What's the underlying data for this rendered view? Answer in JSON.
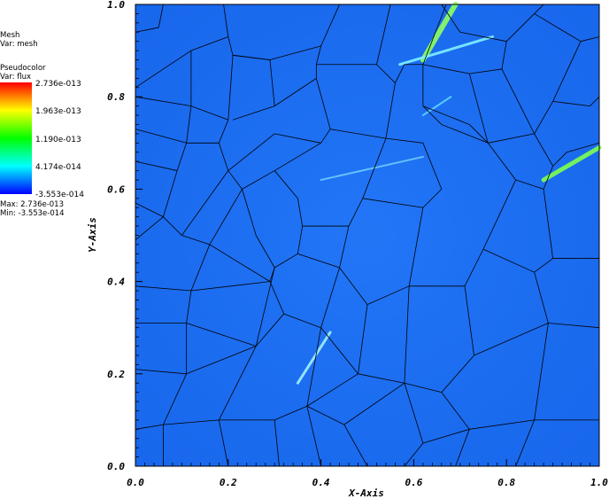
{
  "legend": {
    "mesh_title": "Mesh",
    "mesh_var": "Var: mesh",
    "pc_title": "Pseudocolor",
    "pc_var": "Var: flux",
    "ticks": [
      "2.736e-013",
      "1.963e-013",
      "1.190e-013",
      "4.174e-014",
      "-3.553e-014"
    ],
    "max": "Max:  2.736e-013",
    "min": "Min: -3.553e-014",
    "colors": [
      "#ff0000",
      "#ffff00",
      "#00ff00",
      "#00ffff",
      "#0000ff"
    ]
  },
  "chart_data": {
    "type": "heatmap",
    "title": "",
    "xlabel": "X-Axis",
    "ylabel": "Y-Axis",
    "xlim": [
      0.0,
      1.0
    ],
    "ylim": [
      0.0,
      1.0
    ],
    "xticks": [
      "0.0",
      "0.2",
      "0.4",
      "0.6",
      "0.8",
      "1.0"
    ],
    "yticks": [
      "0.0",
      "0.2",
      "0.4",
      "0.6",
      "0.8",
      "1.0"
    ],
    "colorbar": {
      "min": -3.553e-14,
      "max": 2.736e-13,
      "variable": "flux"
    },
    "base_color": "#1c6ef2",
    "mesh_lines": [
      [
        [
          0.0,
          0.94
        ],
        [
          0.05,
          0.95
        ]
      ],
      [
        [
          0.05,
          0.95
        ],
        [
          0.06,
          1.0
        ]
      ],
      [
        [
          0.0,
          0.82
        ],
        [
          0.12,
          0.9
        ]
      ],
      [
        [
          0.12,
          0.9
        ],
        [
          0.2,
          0.93
        ]
      ],
      [
        [
          0.2,
          0.93
        ],
        [
          0.19,
          1.0
        ]
      ],
      [
        [
          0.2,
          0.93
        ],
        [
          0.21,
          0.89
        ]
      ],
      [
        [
          0.21,
          0.89
        ],
        [
          0.29,
          0.88
        ]
      ],
      [
        [
          0.29,
          0.88
        ],
        [
          0.4,
          0.91
        ]
      ],
      [
        [
          0.4,
          0.91
        ],
        [
          0.44,
          1.0
        ]
      ],
      [
        [
          0.4,
          0.91
        ],
        [
          0.39,
          0.87
        ]
      ],
      [
        [
          0.39,
          0.87
        ],
        [
          0.52,
          0.87
        ]
      ],
      [
        [
          0.52,
          0.87
        ],
        [
          0.55,
          1.0
        ]
      ],
      [
        [
          0.52,
          0.87
        ],
        [
          0.56,
          0.83
        ]
      ],
      [
        [
          0.56,
          0.83
        ],
        [
          0.58,
          0.87
        ]
      ],
      [
        [
          0.58,
          0.87
        ],
        [
          0.62,
          0.87
        ]
      ],
      [
        [
          0.62,
          0.87
        ],
        [
          0.67,
          1.0
        ]
      ],
      [
        [
          0.12,
          0.9
        ],
        [
          0.12,
          0.78
        ]
      ],
      [
        [
          0.0,
          0.8
        ],
        [
          0.12,
          0.78
        ]
      ],
      [
        [
          0.12,
          0.78
        ],
        [
          0.2,
          0.75
        ]
      ],
      [
        [
          0.2,
          0.75
        ],
        [
          0.21,
          0.89
        ]
      ],
      [
        [
          0.21,
          0.89
        ],
        [
          0.29,
          0.88
        ]
      ],
      [
        [
          0.29,
          0.88
        ],
        [
          0.3,
          0.78
        ]
      ],
      [
        [
          0.3,
          0.78
        ],
        [
          0.21,
          0.75
        ]
      ],
      [
        [
          0.39,
          0.87
        ],
        [
          0.39,
          0.84
        ]
      ],
      [
        [
          0.39,
          0.84
        ],
        [
          0.3,
          0.78
        ]
      ],
      [
        [
          0.39,
          0.84
        ],
        [
          0.42,
          0.73
        ]
      ],
      [
        [
          0.42,
          0.73
        ],
        [
          0.54,
          0.71
        ]
      ],
      [
        [
          0.54,
          0.71
        ],
        [
          0.56,
          0.83
        ]
      ],
      [
        [
          0.42,
          0.73
        ],
        [
          0.4,
          0.7
        ]
      ],
      [
        [
          0.4,
          0.7
        ],
        [
          0.3,
          0.72
        ]
      ],
      [
        [
          0.0,
          0.73
        ],
        [
          0.11,
          0.7
        ]
      ],
      [
        [
          0.11,
          0.7
        ],
        [
          0.12,
          0.78
        ]
      ],
      [
        [
          0.11,
          0.7
        ],
        [
          0.09,
          0.64
        ]
      ],
      [
        [
          0.09,
          0.64
        ],
        [
          0.0,
          0.66
        ]
      ],
      [
        [
          0.2,
          0.75
        ],
        [
          0.18,
          0.7
        ]
      ],
      [
        [
          0.18,
          0.7
        ],
        [
          0.11,
          0.7
        ]
      ],
      [
        [
          0.18,
          0.7
        ],
        [
          0.2,
          0.64
        ]
      ],
      [
        [
          0.2,
          0.64
        ],
        [
          0.3,
          0.72
        ]
      ],
      [
        [
          0.2,
          0.64
        ],
        [
          0.23,
          0.6
        ]
      ],
      [
        [
          0.23,
          0.6
        ],
        [
          0.3,
          0.64
        ]
      ],
      [
        [
          0.3,
          0.64
        ],
        [
          0.4,
          0.7
        ]
      ],
      [
        [
          0.3,
          0.64
        ],
        [
          0.35,
          0.58
        ]
      ],
      [
        [
          0.35,
          0.58
        ],
        [
          0.36,
          0.52
        ]
      ],
      [
        [
          0.36,
          0.52
        ],
        [
          0.46,
          0.52
        ]
      ],
      [
        [
          0.46,
          0.52
        ],
        [
          0.49,
          0.58
        ]
      ],
      [
        [
          0.49,
          0.58
        ],
        [
          0.54,
          0.71
        ]
      ],
      [
        [
          0.49,
          0.58
        ],
        [
          0.62,
          0.56
        ]
      ],
      [
        [
          0.62,
          0.56
        ],
        [
          0.66,
          0.6
        ]
      ],
      [
        [
          0.66,
          0.6
        ],
        [
          0.62,
          0.7
        ]
      ],
      [
        [
          0.62,
          0.7
        ],
        [
          0.54,
          0.71
        ]
      ],
      [
        [
          0.62,
          0.87
        ],
        [
          0.62,
          0.78
        ]
      ],
      [
        [
          0.62,
          0.78
        ],
        [
          0.66,
          0.74
        ]
      ],
      [
        [
          0.66,
          0.74
        ],
        [
          0.76,
          0.7
        ]
      ],
      [
        [
          0.76,
          0.7
        ],
        [
          0.72,
          0.74
        ]
      ],
      [
        [
          0.72,
          0.74
        ],
        [
          0.62,
          0.78
        ]
      ],
      [
        [
          0.76,
          0.7
        ],
        [
          0.82,
          0.62
        ]
      ],
      [
        [
          0.82,
          0.62
        ],
        [
          0.88,
          0.6
        ]
      ],
      [
        [
          0.88,
          0.6
        ],
        [
          0.9,
          0.65
        ]
      ],
      [
        [
          0.9,
          0.65
        ],
        [
          0.93,
          0.68
        ]
      ],
      [
        [
          0.93,
          0.68
        ],
        [
          1.0,
          0.7
        ]
      ],
      [
        [
          0.9,
          0.65
        ],
        [
          0.86,
          0.72
        ]
      ],
      [
        [
          0.86,
          0.72
        ],
        [
          0.76,
          0.7
        ]
      ],
      [
        [
          0.86,
          0.72
        ],
        [
          0.9,
          0.79
        ]
      ],
      [
        [
          0.9,
          0.79
        ],
        [
          0.98,
          0.78
        ]
      ],
      [
        [
          0.98,
          0.78
        ],
        [
          1.0,
          0.8
        ]
      ],
      [
        [
          0.62,
          0.87
        ],
        [
          0.72,
          0.85
        ]
      ],
      [
        [
          0.72,
          0.85
        ],
        [
          0.79,
          0.86
        ]
      ],
      [
        [
          0.79,
          0.86
        ],
        [
          0.86,
          0.72
        ]
      ],
      [
        [
          0.72,
          0.85
        ],
        [
          0.76,
          0.7
        ]
      ],
      [
        [
          0.79,
          0.86
        ],
        [
          0.8,
          0.92
        ]
      ],
      [
        [
          0.8,
          0.92
        ],
        [
          0.86,
          0.98
        ]
      ],
      [
        [
          0.86,
          0.98
        ],
        [
          0.88,
          1.0
        ]
      ],
      [
        [
          0.8,
          0.92
        ],
        [
          0.7,
          0.94
        ]
      ],
      [
        [
          0.7,
          0.94
        ],
        [
          0.66,
          1.0
        ]
      ],
      [
        [
          0.86,
          0.98
        ],
        [
          0.96,
          0.92
        ]
      ],
      [
        [
          0.96,
          0.92
        ],
        [
          1.0,
          0.93
        ]
      ],
      [
        [
          0.96,
          0.92
        ],
        [
          0.9,
          0.79
        ]
      ],
      [
        [
          0.0,
          0.57
        ],
        [
          0.06,
          0.54
        ]
      ],
      [
        [
          0.06,
          0.54
        ],
        [
          0.09,
          0.64
        ]
      ],
      [
        [
          0.06,
          0.54
        ],
        [
          0.1,
          0.5
        ]
      ],
      [
        [
          0.1,
          0.5
        ],
        [
          0.2,
          0.64
        ]
      ],
      [
        [
          0.1,
          0.5
        ],
        [
          0.16,
          0.48
        ]
      ],
      [
        [
          0.16,
          0.48
        ],
        [
          0.23,
          0.6
        ]
      ],
      [
        [
          0.16,
          0.48
        ],
        [
          0.12,
          0.38
        ]
      ],
      [
        [
          0.12,
          0.38
        ],
        [
          0.0,
          0.39
        ]
      ],
      [
        [
          0.0,
          0.49
        ],
        [
          0.06,
          0.54
        ]
      ],
      [
        [
          0.23,
          0.6
        ],
        [
          0.26,
          0.5
        ]
      ],
      [
        [
          0.26,
          0.5
        ],
        [
          0.3,
          0.43
        ]
      ],
      [
        [
          0.3,
          0.43
        ],
        [
          0.35,
          0.46
        ]
      ],
      [
        [
          0.35,
          0.46
        ],
        [
          0.36,
          0.52
        ]
      ],
      [
        [
          0.35,
          0.46
        ],
        [
          0.44,
          0.43
        ]
      ],
      [
        [
          0.44,
          0.43
        ],
        [
          0.46,
          0.52
        ]
      ],
      [
        [
          0.3,
          0.43
        ],
        [
          0.29,
          0.4
        ]
      ],
      [
        [
          0.29,
          0.4
        ],
        [
          0.16,
          0.48
        ]
      ],
      [
        [
          0.29,
          0.4
        ],
        [
          0.12,
          0.38
        ]
      ],
      [
        [
          0.12,
          0.38
        ],
        [
          0.11,
          0.31
        ]
      ],
      [
        [
          0.11,
          0.31
        ],
        [
          0.0,
          0.31
        ]
      ],
      [
        [
          0.29,
          0.4
        ],
        [
          0.32,
          0.33
        ]
      ],
      [
        [
          0.32,
          0.33
        ],
        [
          0.26,
          0.26
        ]
      ],
      [
        [
          0.26,
          0.26
        ],
        [
          0.11,
          0.31
        ]
      ],
      [
        [
          0.32,
          0.33
        ],
        [
          0.4,
          0.3
        ]
      ],
      [
        [
          0.4,
          0.3
        ],
        [
          0.44,
          0.43
        ]
      ],
      [
        [
          0.44,
          0.43
        ],
        [
          0.5,
          0.35
        ]
      ],
      [
        [
          0.5,
          0.35
        ],
        [
          0.59,
          0.39
        ]
      ],
      [
        [
          0.59,
          0.39
        ],
        [
          0.62,
          0.56
        ]
      ],
      [
        [
          0.59,
          0.39
        ],
        [
          0.71,
          0.39
        ]
      ],
      [
        [
          0.71,
          0.39
        ],
        [
          0.75,
          0.47
        ]
      ],
      [
        [
          0.75,
          0.47
        ],
        [
          0.82,
          0.62
        ]
      ],
      [
        [
          0.75,
          0.47
        ],
        [
          0.86,
          0.42
        ]
      ],
      [
        [
          0.86,
          0.42
        ],
        [
          0.9,
          0.45
        ]
      ],
      [
        [
          0.9,
          0.45
        ],
        [
          0.88,
          0.6
        ]
      ],
      [
        [
          0.9,
          0.45
        ],
        [
          1.0,
          0.45
        ]
      ],
      [
        [
          0.86,
          0.42
        ],
        [
          0.89,
          0.31
        ]
      ],
      [
        [
          0.89,
          0.31
        ],
        [
          1.0,
          0.3
        ]
      ],
      [
        [
          0.71,
          0.39
        ],
        [
          0.73,
          0.24
        ]
      ],
      [
        [
          0.73,
          0.24
        ],
        [
          0.89,
          0.31
        ]
      ],
      [
        [
          0.4,
          0.3
        ],
        [
          0.48,
          0.2
        ]
      ],
      [
        [
          0.48,
          0.2
        ],
        [
          0.5,
          0.35
        ]
      ],
      [
        [
          0.48,
          0.2
        ],
        [
          0.58,
          0.18
        ]
      ],
      [
        [
          0.58,
          0.18
        ],
        [
          0.59,
          0.39
        ]
      ],
      [
        [
          0.58,
          0.18
        ],
        [
          0.66,
          0.16
        ]
      ],
      [
        [
          0.66,
          0.16
        ],
        [
          0.73,
          0.24
        ]
      ],
      [
        [
          0.0,
          0.21
        ],
        [
          0.11,
          0.2
        ]
      ],
      [
        [
          0.11,
          0.2
        ],
        [
          0.11,
          0.31
        ]
      ],
      [
        [
          0.11,
          0.2
        ],
        [
          0.26,
          0.26
        ]
      ],
      [
        [
          0.11,
          0.2
        ],
        [
          0.06,
          0.09
        ]
      ],
      [
        [
          0.06,
          0.09
        ],
        [
          0.0,
          0.08
        ]
      ],
      [
        [
          0.06,
          0.09
        ],
        [
          0.06,
          0.0
        ]
      ],
      [
        [
          0.06,
          0.09
        ],
        [
          0.18,
          0.1
        ]
      ],
      [
        [
          0.18,
          0.1
        ],
        [
          0.26,
          0.26
        ]
      ],
      [
        [
          0.18,
          0.1
        ],
        [
          0.2,
          0.0
        ]
      ],
      [
        [
          0.18,
          0.1
        ],
        [
          0.3,
          0.1
        ]
      ],
      [
        [
          0.3,
          0.1
        ],
        [
          0.31,
          0.0
        ]
      ],
      [
        [
          0.3,
          0.1
        ],
        [
          0.37,
          0.13
        ]
      ],
      [
        [
          0.37,
          0.13
        ],
        [
          0.48,
          0.2
        ]
      ],
      [
        [
          0.37,
          0.13
        ],
        [
          0.4,
          0.0
        ]
      ],
      [
        [
          0.37,
          0.13
        ],
        [
          0.45,
          0.09
        ]
      ],
      [
        [
          0.45,
          0.09
        ],
        [
          0.5,
          0.0
        ]
      ],
      [
        [
          0.45,
          0.09
        ],
        [
          0.58,
          0.18
        ]
      ],
      [
        [
          0.58,
          0.18
        ],
        [
          0.62,
          0.05
        ]
      ],
      [
        [
          0.62,
          0.05
        ],
        [
          0.58,
          0.0
        ]
      ],
      [
        [
          0.66,
          0.16
        ],
        [
          0.72,
          0.08
        ]
      ],
      [
        [
          0.72,
          0.08
        ],
        [
          0.69,
          0.0
        ]
      ],
      [
        [
          0.72,
          0.08
        ],
        [
          0.62,
          0.05
        ]
      ],
      [
        [
          0.72,
          0.08
        ],
        [
          0.86,
          0.1
        ]
      ],
      [
        [
          0.86,
          0.1
        ],
        [
          0.82,
          0.0
        ]
      ],
      [
        [
          0.86,
          0.1
        ],
        [
          0.89,
          0.31
        ]
      ],
      [
        [
          0.86,
          0.1
        ],
        [
          1.0,
          0.1
        ]
      ],
      [
        [
          0.26,
          0.26
        ],
        [
          0.3,
          0.43
        ]
      ],
      [
        [
          0.4,
          0.3
        ],
        [
          0.37,
          0.13
        ]
      ]
    ],
    "streaks": [
      {
        "from": [
          0.62,
          0.88
        ],
        "to": [
          0.69,
          1.0
        ],
        "color": "#8fff60",
        "width": 6
      },
      {
        "from": [
          0.88,
          0.62
        ],
        "to": [
          1.0,
          0.69
        ],
        "color": "#7fff50",
        "width": 5
      },
      {
        "from": [
          0.57,
          0.87
        ],
        "to": [
          0.77,
          0.93
        ],
        "color": "#7ff0ff",
        "width": 3
      },
      {
        "from": [
          0.35,
          0.18
        ],
        "to": [
          0.42,
          0.29
        ],
        "color": "#9ff0ff",
        "width": 3
      },
      {
        "from": [
          0.4,
          0.62
        ],
        "to": [
          0.62,
          0.67
        ],
        "color": "#6fc8ff",
        "width": 2
      },
      {
        "from": [
          0.62,
          0.76
        ],
        "to": [
          0.68,
          0.8
        ],
        "color": "#5fd8ff",
        "width": 2
      }
    ]
  }
}
